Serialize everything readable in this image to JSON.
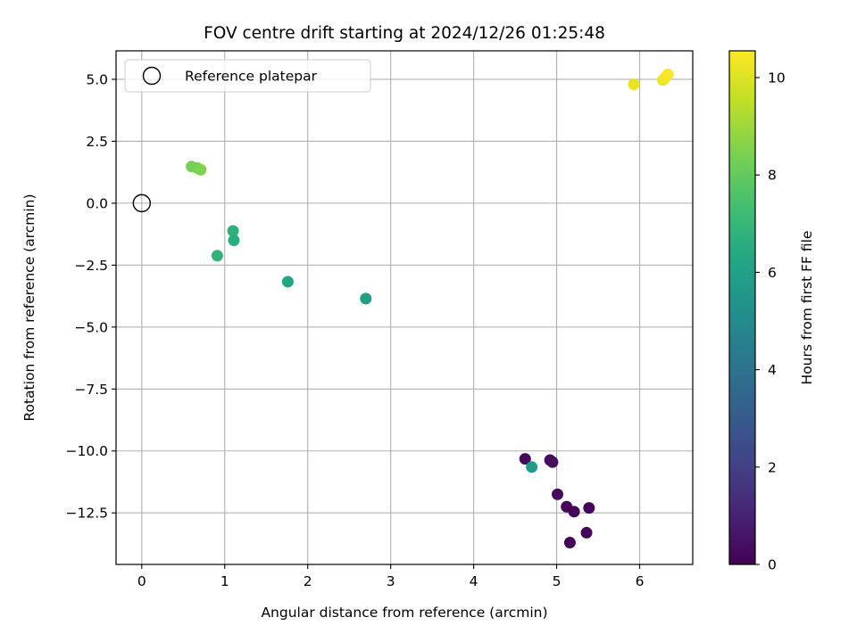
{
  "chart_data": {
    "type": "scatter",
    "title": "FOV centre drift starting at 2024/12/26 01:25:48",
    "xlabel": "Angular distance from reference (arcmin)",
    "ylabel": "Rotation from reference (arcmin)",
    "xlim": [
      -0.31,
      6.64
    ],
    "ylim": [
      -14.58,
      6.15
    ],
    "xticks": [
      0,
      1,
      2,
      3,
      4,
      5,
      6
    ],
    "yticks": [
      -12.5,
      -10.0,
      -7.5,
      -5.0,
      -2.5,
      0.0,
      2.5,
      5.0
    ],
    "xtick_labels": [
      "0",
      "1",
      "2",
      "3",
      "4",
      "5",
      "6"
    ],
    "ytick_labels": [
      "−12.5",
      "−10.0",
      "−7.5",
      "−5.0",
      "−2.5",
      "0.0",
      "2.5",
      "5.0"
    ],
    "grid": true,
    "legend": {
      "position": "upper-left",
      "entries": [
        {
          "label": "Reference platepar",
          "marker": "open-circle"
        }
      ]
    },
    "reference_point": {
      "x": 0,
      "y": 0
    },
    "colorbar": {
      "label": "Hours from first FF file",
      "range": [
        0,
        10.55
      ],
      "ticks": [
        0,
        2,
        4,
        6,
        8,
        10
      ],
      "tick_labels": [
        "0",
        "2",
        "4",
        "6",
        "8",
        "10"
      ],
      "colormap": "viridis"
    },
    "points": [
      {
        "x": 4.62,
        "y": -10.32,
        "hours": 0.3
      },
      {
        "x": 4.92,
        "y": -10.37,
        "hours": 0.35
      },
      {
        "x": 4.95,
        "y": -10.45,
        "hours": 0.4
      },
      {
        "x": 5.01,
        "y": -11.75,
        "hours": 0.3
      },
      {
        "x": 5.12,
        "y": -12.25,
        "hours": 0.2
      },
      {
        "x": 5.21,
        "y": -12.45,
        "hours": 0.1
      },
      {
        "x": 5.39,
        "y": -12.3,
        "hours": 0.15
      },
      {
        "x": 5.36,
        "y": -13.3,
        "hours": 0.1
      },
      {
        "x": 5.16,
        "y": -13.7,
        "hours": 0.05
      },
      {
        "x": 4.7,
        "y": -10.65,
        "hours": 5.8
      },
      {
        "x": 2.7,
        "y": -3.85,
        "hours": 5.9
      },
      {
        "x": 1.76,
        "y": -3.17,
        "hours": 6.2
      },
      {
        "x": 0.91,
        "y": -2.12,
        "hours": 6.8
      },
      {
        "x": 1.1,
        "y": -1.12,
        "hours": 6.7
      },
      {
        "x": 1.11,
        "y": -1.5,
        "hours": 6.6
      },
      {
        "x": 0.6,
        "y": 1.48,
        "hours": 8.4
      },
      {
        "x": 0.67,
        "y": 1.42,
        "hours": 8.3
      },
      {
        "x": 0.71,
        "y": 1.35,
        "hours": 8.5
      },
      {
        "x": 5.93,
        "y": 4.8,
        "hours": 10.2
      },
      {
        "x": 6.28,
        "y": 4.97,
        "hours": 10.3
      },
      {
        "x": 6.31,
        "y": 5.08,
        "hours": 10.4
      },
      {
        "x": 6.34,
        "y": 5.2,
        "hours": 10.5
      }
    ]
  }
}
